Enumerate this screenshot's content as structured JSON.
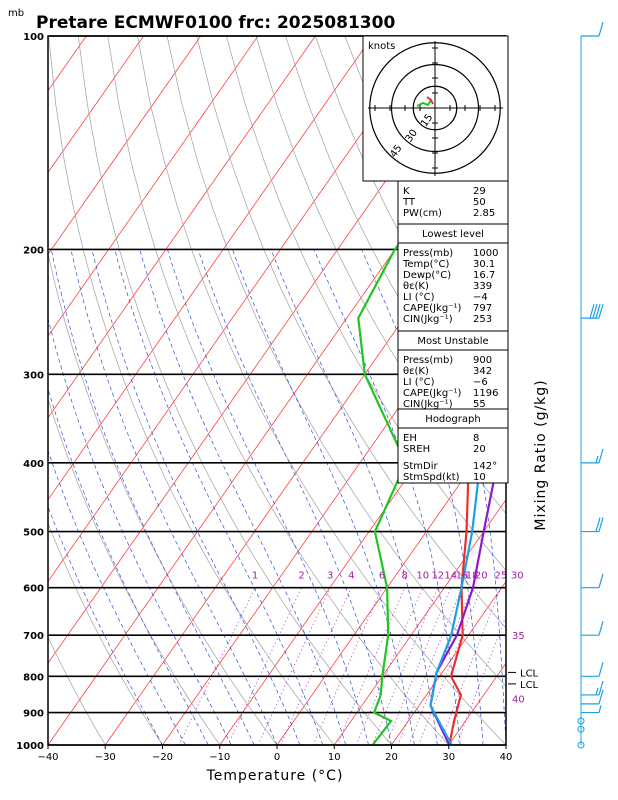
{
  "header": {
    "unit_corner": "mb",
    "title": "Pretare ECMWF0100 frc: 2025081300"
  },
  "chart_data": {
    "type": "skew-t",
    "xlabel": "Temperature (°C)",
    "right_label": "Mixing Ratio (g/kg)",
    "x_ticks": [
      -40,
      -30,
      -20,
      -10,
      0,
      10,
      20,
      30,
      40
    ],
    "xlim": [
      -40,
      40
    ],
    "p_ticks": [
      100,
      200,
      300,
      400,
      500,
      600,
      700,
      800,
      900,
      1000
    ],
    "plim": [
      1000,
      100
    ],
    "mixing_ratio_labels": [
      "1",
      "2",
      "3",
      "4",
      "6",
      "8",
      "10",
      "12",
      "14",
      "16",
      "18",
      "20",
      "25",
      "30"
    ],
    "mixing_ratio_values": [
      1,
      2,
      3,
      4,
      6,
      8,
      10,
      12,
      14,
      16,
      18,
      20,
      25,
      30
    ],
    "side_labels": [
      {
        "text": "35",
        "p": 700
      },
      {
        "text": "40",
        "p": 860
      },
      {
        "text": "LCL",
        "p": 790
      },
      {
        "text": "LCL",
        "p": 820
      }
    ],
    "series": [
      {
        "role": "temperature",
        "color": "#e8302c",
        "points": [
          [
            30.1,
            1000
          ],
          [
            28,
            925
          ],
          [
            26,
            850
          ],
          [
            22,
            800
          ],
          [
            19,
            700
          ],
          [
            13,
            600
          ],
          [
            7,
            500
          ],
          [
            -1,
            400
          ],
          [
            -6,
            300
          ],
          [
            -10,
            200
          ],
          [
            -12,
            100
          ]
        ]
      },
      {
        "role": "dewpoint",
        "color": "#22c422",
        "points": [
          [
            16.7,
            1000
          ],
          [
            17,
            925
          ],
          [
            13,
            900
          ],
          [
            12,
            850
          ],
          [
            10,
            800
          ],
          [
            6,
            700
          ],
          [
            0,
            600
          ],
          [
            -9,
            500
          ],
          [
            -12,
            400
          ],
          [
            -30,
            300
          ],
          [
            -38,
            250
          ],
          [
            -40,
            200
          ],
          [
            -40,
            100
          ]
        ]
      },
      {
        "role": "parcel",
        "color": "#8d19c8",
        "points": [
          [
            30.1,
            1000
          ],
          [
            22,
            880
          ],
          [
            19,
            790
          ],
          [
            18,
            700
          ],
          [
            15,
            600
          ],
          [
            10,
            500
          ],
          [
            4,
            400
          ],
          [
            -6,
            300
          ],
          [
            -22,
            200
          ],
          [
            -50,
            120
          ]
        ]
      },
      {
        "role": "virtual",
        "color": "#1ca0e6",
        "points": [
          [
            30.5,
            1000
          ],
          [
            22,
            880
          ],
          [
            19,
            790
          ],
          [
            17,
            700
          ],
          [
            13,
            600
          ],
          [
            8,
            500
          ],
          [
            1,
            400
          ],
          [
            -9,
            300
          ],
          [
            -26,
            200
          ],
          [
            -55,
            115
          ]
        ]
      }
    ],
    "hodograph": {
      "unit": "knots",
      "ring_labels": [
        "15",
        "30",
        "45"
      ],
      "ring_values": [
        15,
        30,
        45
      ]
    },
    "wind_barbs": [
      {
        "p": 1000,
        "speed": 0
      },
      {
        "p": 950,
        "speed": 0
      },
      {
        "p": 925,
        "speed": 0
      },
      {
        "p": 900,
        "speed": 5
      },
      {
        "p": 875,
        "speed": 10
      },
      {
        "p": 850,
        "speed": 15
      },
      {
        "p": 800,
        "speed": 10
      },
      {
        "p": 700,
        "speed": 10
      },
      {
        "p": 600,
        "speed": 10
      },
      {
        "p": 500,
        "speed": 20
      },
      {
        "p": 400,
        "speed": 15
      },
      {
        "p": 250,
        "speed": 40
      },
      {
        "p": 100,
        "speed": 10
      }
    ]
  },
  "indices": {
    "basic": [
      {
        "label": "K",
        "value": "29"
      },
      {
        "label": "TT",
        "value": "50"
      },
      {
        "label": "PW(cm)",
        "value": "2.85"
      }
    ],
    "lowest": {
      "heading": "Lowest level",
      "rows": [
        {
          "label": "Press(mb)",
          "value": "1000"
        },
        {
          "label": "Temp(°C)",
          "value": "30.1"
        },
        {
          "label": "Dewp(°C)",
          "value": "16.7"
        },
        {
          "label": "θε(K)",
          "value": "339"
        },
        {
          "label": "LI (°C)",
          "value": "−4"
        },
        {
          "label": "CAPE(Jkg⁻¹)",
          "value": "797"
        },
        {
          "label": "CIN(Jkg⁻¹)",
          "value": "253"
        }
      ]
    },
    "unstable": {
      "heading": "Most Unstable",
      "rows": [
        {
          "label": "Press(mb)",
          "value": "900"
        },
        {
          "label": "θε(K)",
          "value": "342"
        },
        {
          "label": "LI (°C)",
          "value": "−6"
        },
        {
          "label": "CAPE(Jkg⁻¹)",
          "value": "1196"
        },
        {
          "label": "CIN(Jkg⁻¹)",
          "value": "55"
        }
      ]
    },
    "hodo": {
      "heading": "Hodograph",
      "rows": [
        {
          "label": "EH",
          "value": "8"
        },
        {
          "label": "SREH",
          "value": "20"
        },
        {
          "label": "StmDir",
          "value": "142°"
        },
        {
          "label": "StmSpd(kt)",
          "value": "10"
        }
      ]
    }
  },
  "colors": {
    "isotherm": "#ff4040",
    "dry_adiabat": "#a0a0a0",
    "moist_adiabat": "#2f4fd8",
    "mixing_ratio": "#a020a0",
    "barb": "#1ca0e6",
    "hodo_green": "#22c422",
    "hodo_red": "#e8302c"
  }
}
